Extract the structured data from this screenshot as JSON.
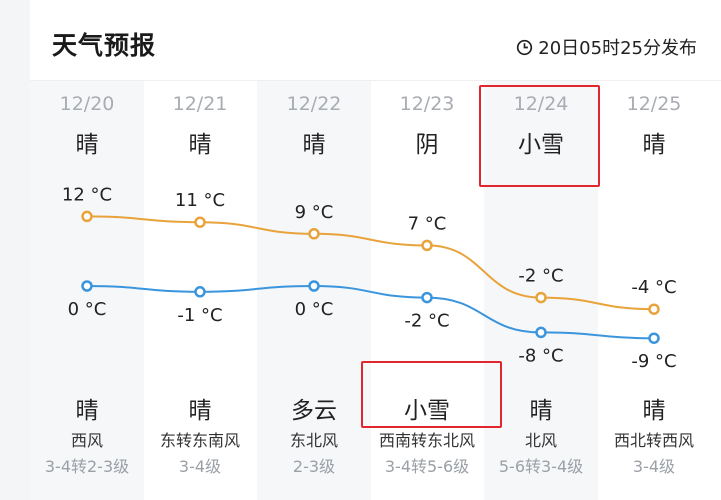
{
  "header": {
    "title": "天气预报",
    "publish_time": "20日05时25分发布",
    "publish_icon": "clock-icon"
  },
  "days": [
    {
      "date": "12/20",
      "day_weather": "晴",
      "night_weather": "晴",
      "wind_dir": "西风",
      "wind_level": "3-4转2-3级",
      "high": "12 °C",
      "low": "0 °C"
    },
    {
      "date": "12/21",
      "day_weather": "晴",
      "night_weather": "晴",
      "wind_dir": "东转东南风",
      "wind_level": "3-4级",
      "high": "11 °C",
      "low": "-1 °C"
    },
    {
      "date": "12/22",
      "day_weather": "晴",
      "night_weather": "多云",
      "wind_dir": "东北风",
      "wind_level": "2-3级",
      "high": "9 °C",
      "low": "0 °C"
    },
    {
      "date": "12/23",
      "day_weather": "阴",
      "night_weather": "小雪",
      "wind_dir": "西南转东北风",
      "wind_level": "3-4转5-6级",
      "high": "7 °C",
      "low": "-2 °C"
    },
    {
      "date": "12/24",
      "day_weather": "小雪",
      "night_weather": "晴",
      "wind_dir": "北风",
      "wind_level": "5-6转3-4级",
      "high": "-2 °C",
      "low": "-8 °C"
    },
    {
      "date": "12/25",
      "day_weather": "晴",
      "night_weather": "晴",
      "wind_dir": "西北转西风",
      "wind_level": "3-4级",
      "high": "-4 °C",
      "low": "-9 °C"
    }
  ],
  "chart_data": {
    "type": "line",
    "categories": [
      "12/20",
      "12/21",
      "12/22",
      "12/23",
      "12/24",
      "12/25"
    ],
    "series": [
      {
        "values": [
          12,
          11,
          9,
          7,
          -2,
          -4
        ],
        "color": "#e8a33a"
      },
      {
        "values": [
          0,
          -1,
          0,
          -2,
          -8,
          -9
        ],
        "color": "#3a95dd"
      }
    ],
    "unit": "°C"
  },
  "highlights": {
    "border_color": "#e0262f"
  }
}
